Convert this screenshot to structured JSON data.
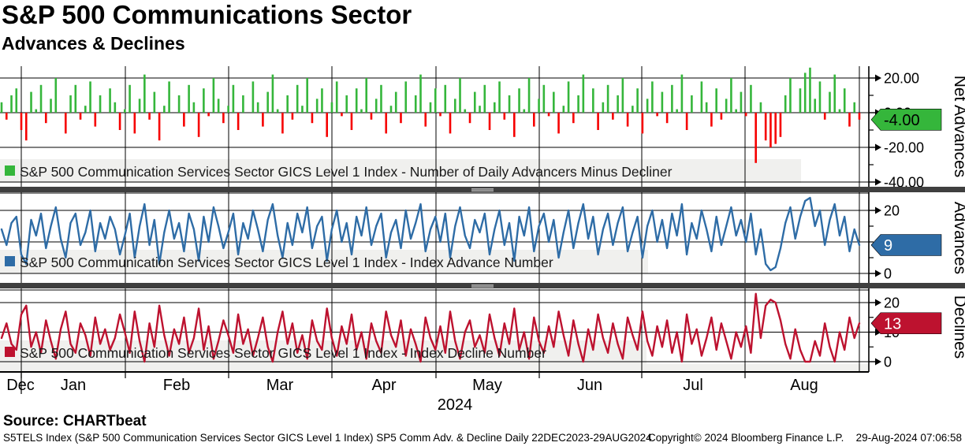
{
  "header": {
    "title": "S&P 500 Communications Sector",
    "subtitle": "Advances & Declines"
  },
  "footer": {
    "source": "Source: CHARTbeat",
    "disclaimer": "S5TELS Index (S&P 500 Communication Services Sector GICS Level 1 Index) SP5 Comm Adv. & Decline  Daily 22DEC2023-29AUG2024",
    "copyright": "Copyright© 2024 Bloomberg Finance L.P.",
    "timestamp": "29-Aug-2024 07:06:58"
  },
  "colors": {
    "advancer_green": "#35b63b",
    "decliner_red": "#f60000",
    "advances_blue": "#2e6ca6",
    "declines_crimson": "#bd122f",
    "separator_gray": "#3f3f3f",
    "legend_bg": "#f0f0ee"
  },
  "chart_data": {
    "x": {
      "period": "Daily 22DEC2023-29AUG2024",
      "month_labels": [
        "Dec",
        "Jan",
        "Feb",
        "Mar",
        "Apr",
        "May",
        "Jun",
        "Jul",
        "Aug"
      ],
      "year_label": "2024",
      "points": 175
    },
    "panels": [
      {
        "type": "bar",
        "axis_title": "Net Advances",
        "legend": "S&P 500 Communication Services Sector GICS Level 1 Index - Number of Daily Advancers Minus Decliner",
        "legend_swatch": "#35b63b",
        "ylim": [
          -43,
          28
        ],
        "yticks": [
          {
            "value": 20,
            "label": "20.00"
          },
          {
            "value": 0,
            "label": "0.00"
          },
          {
            "value": -20,
            "label": "-20.00"
          },
          {
            "value": -40,
            "label": "-40.00"
          }
        ],
        "minor_ticks": [
          10,
          -10,
          -30
        ],
        "gridlines": [
          20,
          0,
          -20,
          -40
        ],
        "tag": {
          "label": "-4.00",
          "value": -4,
          "bg": "#35b63b",
          "fg": "#000000"
        },
        "pos_color": "#35b63b",
        "neg_color": "#f60000",
        "values": [
          6,
          -4,
          10,
          14,
          -10,
          -16,
          12,
          2,
          16,
          -6,
          8,
          20,
          0,
          -12,
          10,
          16,
          -4,
          4,
          18,
          -8,
          10,
          0,
          14,
          6,
          -10,
          2,
          16,
          -12,
          8,
          22,
          -4,
          12,
          -16,
          4,
          18,
          0,
          10,
          -8,
          16,
          6,
          -14,
          14,
          -2,
          20,
          8,
          -6,
          4,
          16,
          -10,
          10,
          0,
          18,
          6,
          -8,
          12,
          22,
          2,
          -12,
          10,
          -4,
          16,
          4,
          20,
          -6,
          8,
          14,
          -14,
          6,
          18,
          -2,
          10,
          -10,
          14,
          2,
          20,
          -4,
          8,
          16,
          -12,
          4,
          12,
          -6,
          18,
          0,
          10,
          22,
          -8,
          6,
          14,
          -2,
          16,
          -12,
          8,
          20,
          2,
          -6,
          12,
          4,
          16,
          -10,
          6,
          18,
          -4,
          10,
          -14,
          14,
          2,
          20,
          -8,
          8,
          16,
          -2,
          12,
          -12,
          4,
          18,
          -6,
          10,
          22,
          0,
          14,
          -10,
          6,
          16,
          -4,
          10,
          20,
          -8,
          4,
          14,
          -12,
          8,
          18,
          -2,
          12,
          -6,
          16,
          2,
          22,
          -10,
          10,
          0,
          18,
          6,
          -8,
          14,
          -4,
          8,
          20,
          2,
          12,
          -2,
          16,
          -29,
          6,
          -16,
          -20,
          -18,
          -14,
          10,
          20,
          0,
          14,
          23,
          26,
          8,
          18,
          -4,
          12,
          22,
          2,
          14,
          -8,
          6,
          -4
        ]
      },
      {
        "type": "line",
        "axis_title": "Advances",
        "legend": "S&P 500 Communication Services Sector GICS Level 1 Index - Index Advance Number",
        "legend_swatch": "#2e6ca6",
        "ylim": [
          -1,
          25.5
        ],
        "yticks": [
          {
            "value": 20,
            "label": "20"
          },
          {
            "value": 0,
            "label": "0"
          }
        ],
        "minor_ticks": [
          15,
          10,
          5
        ],
        "gridlines": [
          20,
          10,
          0
        ],
        "tag": {
          "label": "9",
          "value": 9,
          "bg": "#2e6ca6",
          "fg": "#ffffff"
        },
        "line_color": "#2e6ca6",
        "values": [
          14,
          9,
          16,
          18,
          6,
          3,
          17,
          12,
          19,
          8,
          15,
          21,
          11,
          5,
          16,
          19,
          9,
          13,
          20,
          7,
          16,
          11,
          18,
          14,
          6,
          12,
          19,
          5,
          15,
          22,
          9,
          17,
          3,
          13,
          20,
          11,
          16,
          7,
          19,
          14,
          4,
          18,
          10,
          21,
          15,
          8,
          13,
          19,
          6,
          16,
          11,
          20,
          14,
          7,
          17,
          22,
          12,
          5,
          16,
          9,
          19,
          13,
          21,
          8,
          15,
          18,
          4,
          14,
          20,
          10,
          16,
          6,
          18,
          12,
          21,
          9,
          15,
          19,
          5,
          13,
          17,
          8,
          20,
          11,
          16,
          22,
          7,
          14,
          18,
          10,
          19,
          5,
          15,
          21,
          12,
          8,
          17,
          13,
          19,
          6,
          14,
          20,
          9,
          16,
          4,
          18,
          12,
          21,
          7,
          15,
          19,
          10,
          17,
          5,
          13,
          20,
          8,
          16,
          22,
          11,
          18,
          6,
          14,
          19,
          9,
          16,
          21,
          7,
          13,
          18,
          5,
          15,
          20,
          10,
          17,
          8,
          19,
          12,
          22,
          6,
          16,
          11,
          20,
          14,
          7,
          18,
          9,
          15,
          21,
          12,
          17,
          10,
          19,
          6,
          14,
          3,
          1,
          2,
          8,
          16,
          21,
          11,
          18,
          23,
          24,
          15,
          20,
          9,
          17,
          22,
          12,
          18,
          7,
          14,
          9
        ]
      },
      {
        "type": "line",
        "axis_title": "Declines",
        "legend": "S&P 500 Communication Services Sector GICS Level 1 Index - Index Decline Number",
        "legend_swatch": "#bd122f",
        "ylim": [
          -3,
          24.3
        ],
        "yticks": [
          {
            "value": 20,
            "label": "20"
          },
          {
            "value": 10,
            "label": "10"
          },
          {
            "value": 0,
            "label": "0"
          }
        ],
        "minor_ticks": [
          15,
          5
        ],
        "gridlines": [
          20,
          10,
          0
        ],
        "tag": {
          "label": "13",
          "value": 13,
          "bg": "#bd122f",
          "fg": "#ffffff"
        },
        "line_color": "#bd122f",
        "values": [
          8,
          13,
          6,
          4,
          16,
          19,
          5,
          10,
          3,
          14,
          7,
          1,
          11,
          17,
          6,
          3,
          13,
          9,
          2,
          15,
          6,
          11,
          4,
          8,
          16,
          10,
          3,
          17,
          7,
          0,
          13,
          5,
          19,
          9,
          2,
          11,
          6,
          15,
          3,
          8,
          18,
          4,
          12,
          1,
          7,
          14,
          9,
          3,
          16,
          6,
          11,
          2,
          8,
          15,
          5,
          0,
          10,
          17,
          6,
          13,
          3,
          9,
          1,
          14,
          7,
          4,
          18,
          8,
          2,
          12,
          6,
          16,
          4,
          10,
          1,
          13,
          7,
          3,
          17,
          9,
          5,
          14,
          2,
          11,
          6,
          0,
          15,
          8,
          4,
          12,
          3,
          17,
          7,
          1,
          10,
          14,
          5,
          9,
          3,
          16,
          8,
          2,
          13,
          6,
          18,
          4,
          10,
          1,
          15,
          7,
          3,
          12,
          5,
          17,
          9,
          2,
          14,
          6,
          0,
          11,
          4,
          16,
          8,
          3,
          13,
          6,
          1,
          15,
          9,
          4,
          17,
          7,
          2,
          12,
          5,
          14,
          3,
          10,
          0,
          16,
          6,
          11,
          2,
          8,
          15,
          4,
          13,
          7,
          1,
          10,
          5,
          12,
          3,
          23,
          8,
          19,
          21,
          20,
          14,
          6,
          1,
          11,
          4,
          0,
          0,
          7,
          2,
          13,
          5,
          0,
          10,
          4,
          15,
          8,
          13
        ]
      }
    ]
  }
}
